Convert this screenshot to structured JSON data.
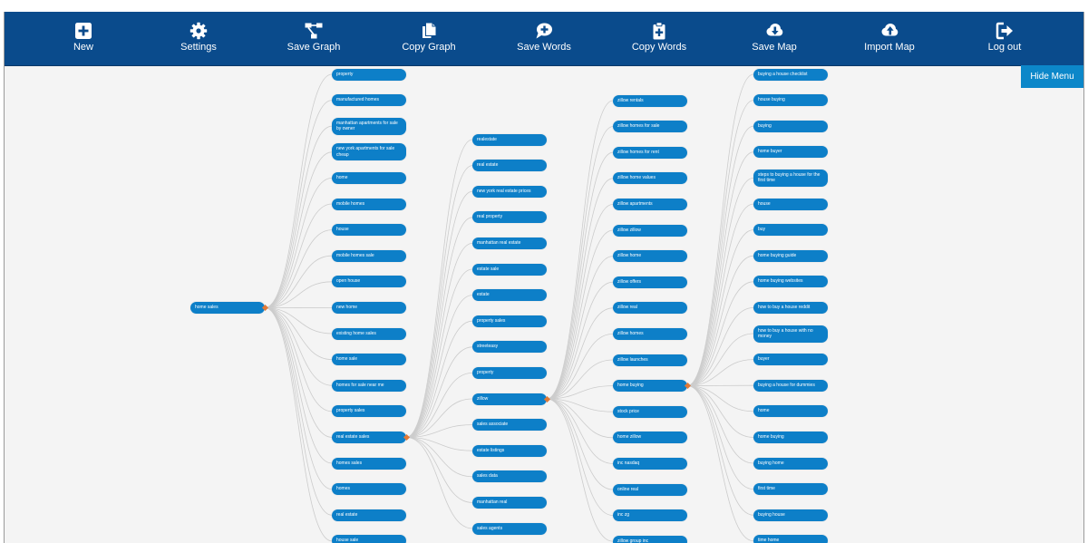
{
  "toolbar": {
    "items": [
      {
        "label": "New",
        "icon": "plus-square-icon"
      },
      {
        "label": "Settings",
        "icon": "gear-icon"
      },
      {
        "label": "Save Graph",
        "icon": "graph-icon"
      },
      {
        "label": "Copy Graph",
        "icon": "copy-icon"
      },
      {
        "label": "Save Words",
        "icon": "chat-plus-icon"
      },
      {
        "label": "Copy Words",
        "icon": "clipboard-plus-icon"
      },
      {
        "label": "Save Map",
        "icon": "cloud-download-icon"
      },
      {
        "label": "Import Map",
        "icon": "cloud-upload-icon"
      },
      {
        "label": "Log out",
        "icon": "logout-icon"
      }
    ]
  },
  "hide_menu_label": "Hide Menu",
  "colors": {
    "toolbar": "#0a4b8c",
    "node": "#0d7fc8",
    "hide_menu": "#0c87c9",
    "connector": "#e07a38",
    "edge": "#cccccc"
  },
  "graph": {
    "root": "home sales",
    "columns": [
      {
        "parent": "home sales",
        "items": [
          "property",
          "manufactured homes",
          "manhattan apartments for sale by owner",
          "new york apartments for sale cheap",
          "home",
          "mobile homes",
          "house",
          "mobile homes sale",
          "open house",
          "new home",
          "existing home sales",
          "home sale",
          "homes for sale near me",
          "property sales",
          "real estate sales",
          "homes sales",
          "homes",
          "real estate",
          "house sale"
        ]
      },
      {
        "parent": "real estate sales",
        "items": [
          "realestate",
          "real estate",
          "new york real estate prices",
          "real property",
          "manhattan real estate",
          "estate sale",
          "estate",
          "property sales",
          "streeteasy",
          "property",
          "zillow",
          "sales associate",
          "estate listings",
          "sales data",
          "manhattan real",
          "sales agents"
        ]
      },
      {
        "parent": "zillow",
        "items": [
          "zillow rentals",
          "zillow homes for sale",
          "zillow homes for rent",
          "zillow home values",
          "zillow apartments",
          "zillow zillow",
          "zillow home",
          "zillow offers",
          "zillow real",
          "zillow homes",
          "zillow launches",
          "home buying",
          "stock price",
          "home zillow",
          "inc nasdaq",
          "online real",
          "inc zg",
          "zillow group inc"
        ]
      },
      {
        "parent": "home buying",
        "items": [
          "buying a house checklist",
          "house buying",
          "buying",
          "home buyer",
          "steps to buying a house for the first time",
          "house",
          "buy",
          "home buying guide",
          "home buying websites",
          "how to buy a house reddit",
          "how to buy a house with no money",
          "buyer",
          "buying a house for dummies",
          "home",
          "home buying",
          "buying home",
          "first time",
          "buying house",
          "time home"
        ]
      }
    ]
  }
}
